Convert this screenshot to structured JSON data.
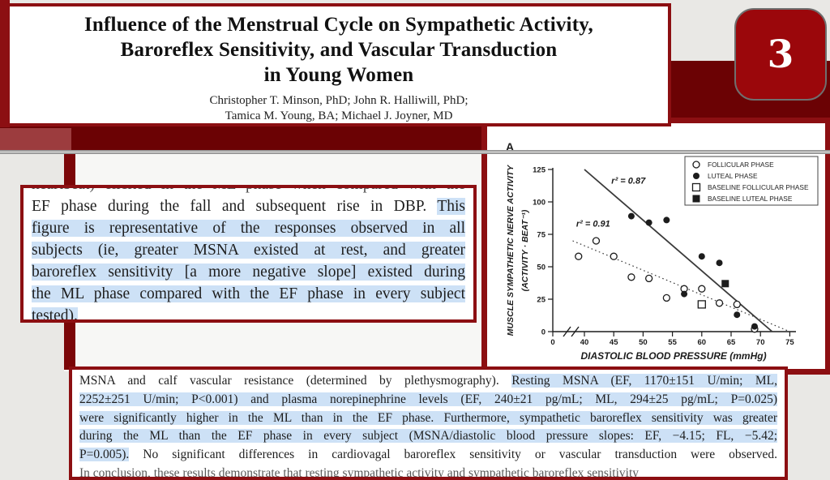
{
  "colors": {
    "accent_border": "#8c0f12",
    "band": "#6b0204",
    "band_light": "#9c3c3e",
    "badge_bg": "#9b070b",
    "highlight": "#cde1f6",
    "left_bar": "#7b0608"
  },
  "slide": {
    "badge": "3",
    "title_lines": [
      "Influence of the Menstrual Cycle on Sympathetic Activity,",
      "Baroreflex Sensitivity, and Vascular Transduction",
      "in Young Women"
    ],
    "author_lines": [
      "Christopher T. Minson, PhD; John R. Halliwill, PhD;",
      "Tamica M. Young, BA; Michael J. Joyner, MD"
    ],
    "left_box": {
      "lines": [
        {
          "clip": "top",
          "segs": [
            {
              "t": "heartbeat) elicited in the ML phase when compared with the",
              "hl": false
            }
          ]
        },
        {
          "segs": [
            {
              "t": "EF phase during the fall and subsequent rise in DBP. ",
              "hl": false
            },
            {
              "t": "This",
              "hl": true
            }
          ]
        },
        {
          "segs": [
            {
              "t": "figure is representative of the responses observed in all",
              "hl": true
            }
          ]
        },
        {
          "segs": [
            {
              "t": "subjects (ie, greater MSNA existed at rest, and greater",
              "hl": true
            }
          ]
        },
        {
          "segs": [
            {
              "t": "baroreflex sensitivity [a more negative slope] existed during",
              "hl": true
            }
          ]
        },
        {
          "segs": [
            {
              "t": "the ML phase compared with the EF phase in every subject",
              "hl": true
            }
          ]
        },
        {
          "last": true,
          "segs": [
            {
              "t": "tested).",
              "hl": true
            }
          ]
        }
      ]
    },
    "bottom_box": {
      "lines": [
        {
          "segs": [
            {
              "t": "MSNA and calf vascular resistance (determined by plethysmography). ",
              "hl": false
            },
            {
              "t": "Resting MSNA (EF, 1170±151 U/min; ML,",
              "hl": true
            }
          ]
        },
        {
          "segs": [
            {
              "t": "2252±251 U/min; P<0.001) and plasma norepinephrine levels (EF, 240±21 pg/mL; ML, 294±25 pg/mL; P=0.025)",
              "hl": true
            }
          ]
        },
        {
          "segs": [
            {
              "t": "were significantly higher in the ML than in the EF phase. Furthermore, sympathetic baroreflex sensitivity was greater",
              "hl": true
            }
          ]
        },
        {
          "segs": [
            {
              "t": "during the ML than the EF phase in every subject (MSNA/diastolic blood pressure slopes: EF, −4.15; FL, −5.42;",
              "hl": true
            }
          ]
        },
        {
          "segs": [
            {
              "t": "P=0.005).",
              "hl": true
            },
            {
              "t": " No significant differences in cardiovagal baroreflex sensitivity or vascular transduction were observed.",
              "hl": false
            }
          ]
        },
        {
          "clip": "bottom",
          "last": true,
          "segs": [
            {
              "t": "In conclusion, these results demonstrate that resting sympathetic activity and sympathetic baroreflex sensitivity",
              "hl": false
            }
          ]
        }
      ]
    }
  },
  "chart_data": {
    "type": "scatter",
    "panel_label": "A",
    "xlabel": "DIASTOLIC BLOOD PRESSURE (mmHg)",
    "ylabel_lines": [
      "MUSCLE SYMPATHETIC NERVE ACTIVITY",
      "(ACTIVITY · BEAT⁻¹)"
    ],
    "x_ticks": [
      0,
      40,
      45,
      50,
      55,
      60,
      65,
      70,
      75
    ],
    "y_ticks": [
      0,
      25,
      50,
      75,
      100,
      125
    ],
    "xlim": [
      40,
      75
    ],
    "ylim": [
      0,
      125
    ],
    "x_axis_break": true,
    "grid": false,
    "legend_position": "top-right",
    "series": [
      {
        "name": "FOLLICULAR PHASE",
        "marker": "circle-open",
        "points": [
          [
            39,
            58
          ],
          [
            42,
            70
          ],
          [
            45,
            58
          ],
          [
            48,
            42
          ],
          [
            51,
            41
          ],
          [
            54,
            26
          ],
          [
            57,
            33
          ],
          [
            60,
            33
          ],
          [
            63,
            22
          ],
          [
            66,
            21
          ],
          [
            69,
            2
          ]
        ]
      },
      {
        "name": "LUTEAL PHASE",
        "marker": "circle-filled",
        "points": [
          [
            48,
            89
          ],
          [
            51,
            84
          ],
          [
            54,
            86
          ],
          [
            57,
            29
          ],
          [
            60,
            58
          ],
          [
            63,
            53
          ],
          [
            66,
            13
          ],
          [
            69,
            4
          ]
        ]
      },
      {
        "name": "BASELINE FOLLICULAR PHASE",
        "marker": "square-open",
        "points": [
          [
            60,
            21
          ]
        ]
      },
      {
        "name": "BASELINE LUTEAL PHASE",
        "marker": "square-filled",
        "points": [
          [
            64,
            37
          ]
        ]
      }
    ],
    "fit_lines": [
      {
        "style": "solid",
        "from": [
          40,
          125
        ],
        "to": [
          72,
          0
        ],
        "r2_label": "r² = 0.87",
        "label_pos": [
          44.6,
          114
        ]
      },
      {
        "style": "dotted",
        "from": [
          38,
          70
        ],
        "to": [
          75,
          0
        ],
        "r2_label": "r² = 0.91",
        "label_pos": [
          38.6,
          81
        ]
      }
    ]
  }
}
